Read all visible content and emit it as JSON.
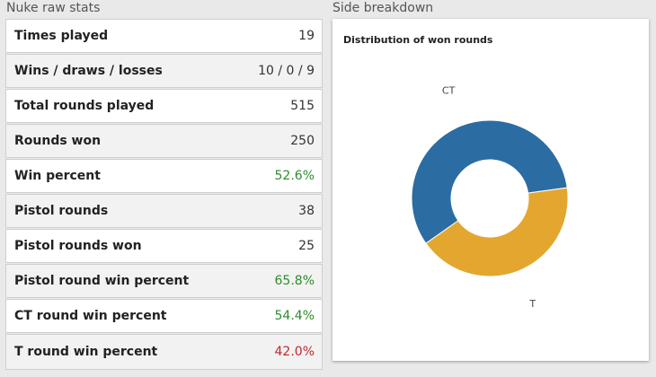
{
  "left_panel": {
    "title": "Nuke raw stats",
    "rows": [
      {
        "label": "Times played",
        "value": "19",
        "tone": "neutral"
      },
      {
        "label": "Wins / draws / losses",
        "value": "10 / 0 / 9",
        "tone": "neutral"
      },
      {
        "label": "Total rounds played",
        "value": "515",
        "tone": "neutral"
      },
      {
        "label": "Rounds won",
        "value": "250",
        "tone": "neutral"
      },
      {
        "label": "Win percent",
        "value": "52.6%",
        "tone": "good"
      },
      {
        "label": "Pistol rounds",
        "value": "38",
        "tone": "neutral"
      },
      {
        "label": "Pistol rounds won",
        "value": "25",
        "tone": "neutral"
      },
      {
        "label": "Pistol round win percent",
        "value": "65.8%",
        "tone": "good"
      },
      {
        "label": "CT round win percent",
        "value": "54.4%",
        "tone": "good"
      },
      {
        "label": "T round win percent",
        "value": "42.0%",
        "tone": "bad"
      }
    ]
  },
  "right_panel": {
    "title": "Side breakdown"
  },
  "colors": {
    "good": "#2e8b2e",
    "bad": "#c0282d",
    "ct": "#2b6ca3",
    "t": "#e3a72f"
  },
  "chart_data": {
    "type": "pie",
    "donut": true,
    "title": "Distribution of won rounds",
    "categories": [
      "CT",
      "T"
    ],
    "values": [
      144,
      106
    ],
    "colors": [
      "#2b6ca3",
      "#e3a72f"
    ],
    "legend": "none"
  }
}
